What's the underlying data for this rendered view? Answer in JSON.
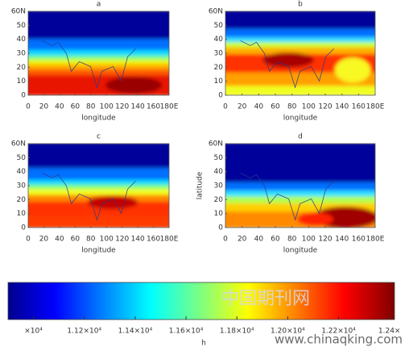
{
  "chart_data": [
    {
      "type": "contour",
      "title": "a",
      "xlabel": "longitude",
      "xlim": [
        0,
        180
      ],
      "xticks": [
        0,
        20,
        40,
        60,
        80,
        100,
        120,
        140,
        160,
        {
          "value": 180,
          "label": "180E"
        }
      ],
      "ylim": [
        0,
        60
      ],
      "yticks": [
        0,
        10,
        20,
        30,
        40,
        50,
        {
          "value": 60,
          "label": "60N"
        }
      ]
    },
    {
      "type": "contour",
      "title": "b",
      "xlabel": "longitude",
      "xlim": [
        0,
        180
      ],
      "xticks": [
        0,
        20,
        40,
        60,
        80,
        100,
        120,
        140,
        160,
        {
          "value": 180,
          "label": "180E"
        }
      ],
      "ylim": [
        0,
        60
      ],
      "yticks": [
        0,
        10,
        20,
        30,
        40,
        50,
        {
          "value": 60,
          "label": "60N"
        }
      ]
    },
    {
      "type": "contour",
      "title": "c",
      "xlabel": "longitude",
      "xlim": [
        0,
        180
      ],
      "xticks": [
        0,
        20,
        40,
        60,
        80,
        100,
        120,
        140,
        160,
        {
          "value": 180,
          "label": "180E"
        }
      ],
      "ylim": [
        0,
        60
      ],
      "yticks": [
        0,
        10,
        20,
        30,
        40,
        50,
        {
          "value": 60,
          "label": "60N"
        }
      ]
    },
    {
      "type": "contour",
      "title": "d",
      "xlabel": "longitude",
      "ylabel": "latitude",
      "xlim": [
        0,
        180
      ],
      "xticks": [
        0,
        20,
        40,
        60,
        80,
        100,
        120,
        140,
        160,
        {
          "value": 180,
          "label": "180E"
        }
      ],
      "ylim": [
        0,
        60
      ],
      "yticks": [
        0,
        10,
        20,
        30,
        40,
        50,
        {
          "value": 60,
          "label": "60N"
        }
      ]
    },
    {
      "type": "colorbar",
      "label": "h",
      "clim": [
        10900,
        12420
      ],
      "ticks": [
        {
          "value": 11000,
          "label": "×10⁴"
        },
        {
          "value": 11200,
          "label": "1.12×10⁴"
        },
        {
          "value": 11400,
          "label": "1.14×10⁴"
        },
        {
          "value": 11600,
          "label": "1.16×10⁴"
        },
        {
          "value": 11800,
          "label": "1.18×10⁴"
        },
        {
          "value": 12000,
          "label": "1.20×10⁴"
        },
        {
          "value": 12200,
          "label": "1.22×10⁴"
        },
        {
          "value": 12400,
          "label": "1.24×"
        }
      ]
    }
  ],
  "watermark": [
    "中国期刊网",
    "www.chinaqking.com"
  ]
}
